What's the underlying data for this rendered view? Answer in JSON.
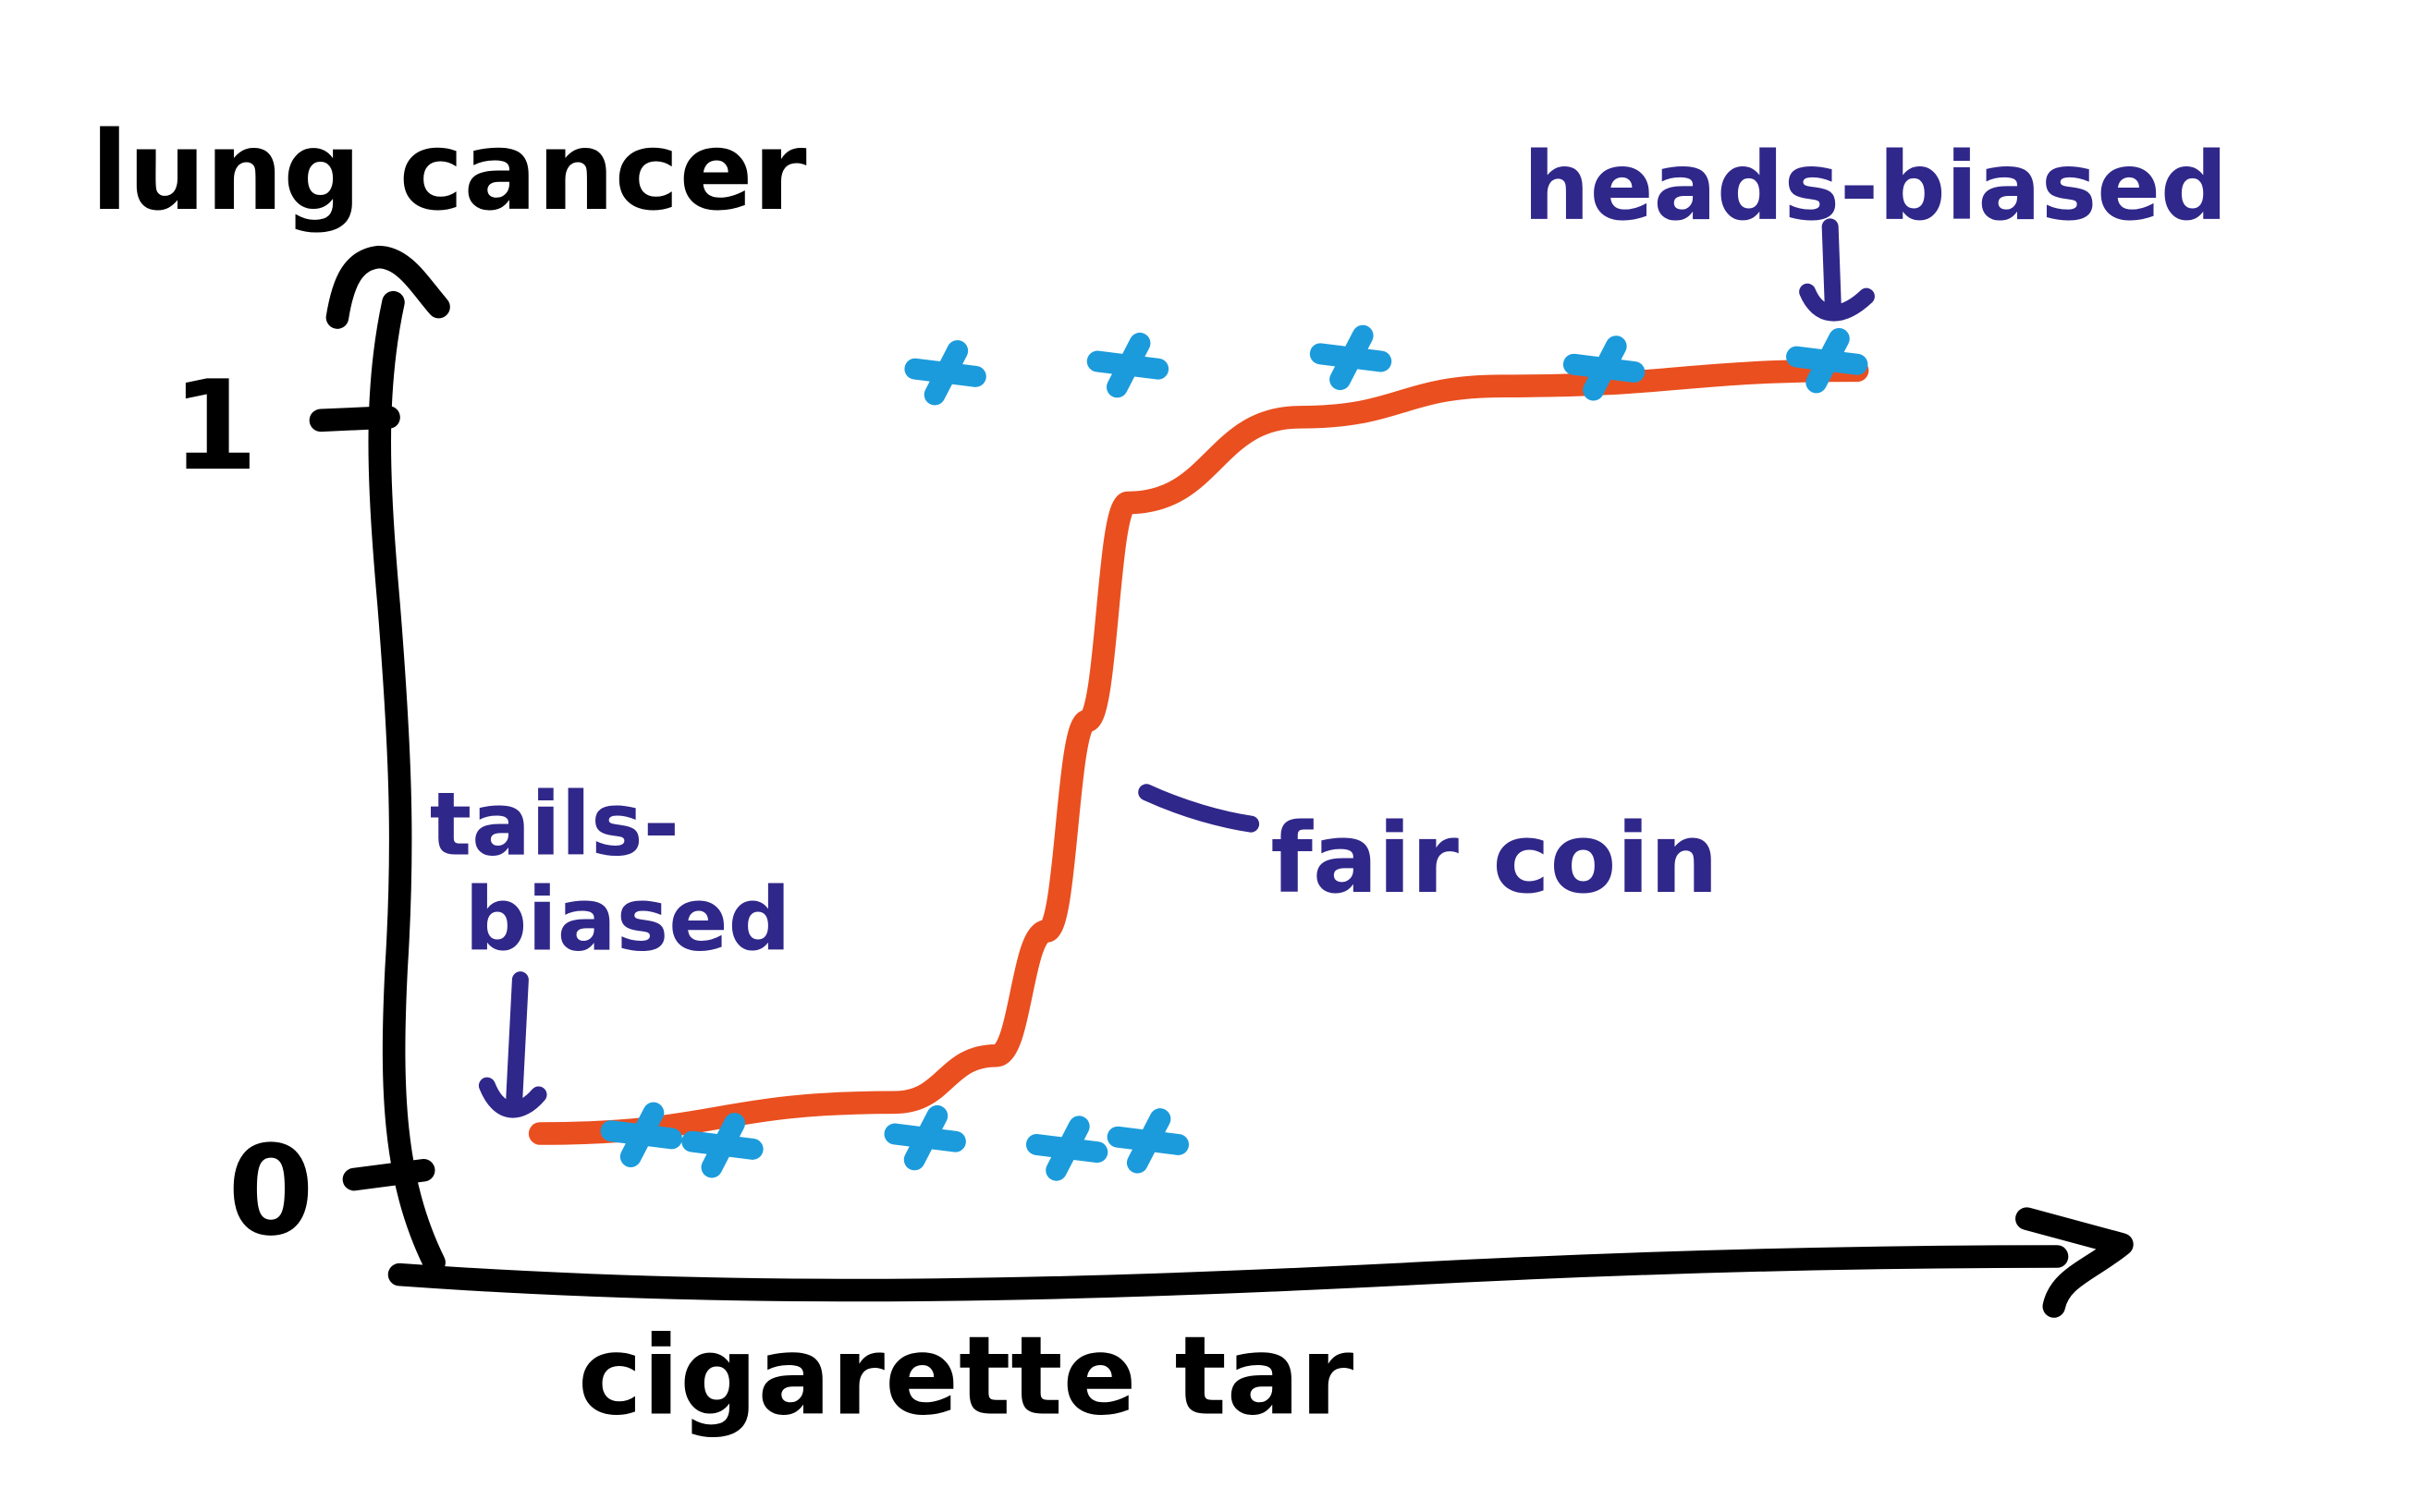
{
  "chart_data": {
    "type": "scatter",
    "title": "",
    "xlabel": "cigarette tar",
    "ylabel": "lung cancer",
    "y_ticks": [
      "1",
      "0"
    ],
    "ylim": [
      0,
      1
    ],
    "grid": false,
    "points": [
      {
        "x": 1.0,
        "y": 0
      },
      {
        "x": 1.8,
        "y": 0
      },
      {
        "x": 3.8,
        "y": 0
      },
      {
        "x": 5.2,
        "y": 0
      },
      {
        "x": 6.0,
        "y": 0
      },
      {
        "x": 4.0,
        "y": 1
      },
      {
        "x": 5.8,
        "y": 1
      },
      {
        "x": 8.0,
        "y": 1
      },
      {
        "x": 10.5,
        "y": 1
      },
      {
        "x": 12.7,
        "y": 1
      }
    ],
    "curve": {
      "label": "fair coin",
      "points": [
        [
          0,
          0.02
        ],
        [
          3.5,
          0.06
        ],
        [
          4.5,
          0.12
        ],
        [
          5.0,
          0.28
        ],
        [
          5.4,
          0.55
        ],
        [
          5.8,
          0.83
        ],
        [
          7.5,
          0.94
        ],
        [
          9.5,
          0.98
        ],
        [
          13.0,
          1.0
        ]
      ]
    },
    "annotations": [
      {
        "text": "heads-biased",
        "target": "upper points"
      },
      {
        "text": "tails-biased",
        "target": "lower points"
      },
      {
        "text": "fair coin",
        "target": "curve"
      }
    ]
  },
  "colors": {
    "axis": "#000000",
    "annotation": "#30278a",
    "marker": "#1b9bdc",
    "curve": "#ea4f1f"
  }
}
